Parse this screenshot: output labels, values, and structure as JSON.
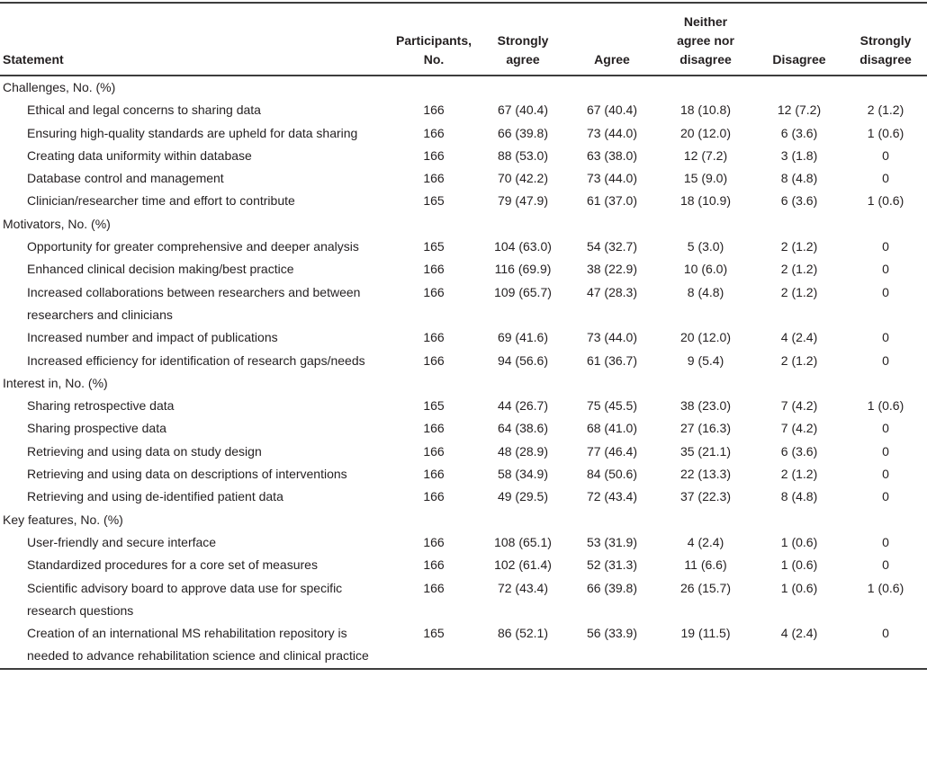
{
  "style": {
    "background": "#ffffff",
    "text_color": "#231f20",
    "rule_color": "#3d3d3d"
  },
  "table": {
    "columns": [
      {
        "label": "Statement"
      },
      {
        "label": "Participants,\nNo."
      },
      {
        "label": "Strongly\nagree"
      },
      {
        "label": "Agree"
      },
      {
        "label": "Neither\nagree nor\ndisagree"
      },
      {
        "label": "Disagree"
      },
      {
        "label": "Strongly\ndisagree"
      }
    ],
    "sections": [
      {
        "header": "Challenges, No. (%)",
        "rows": [
          [
            "Ethical and legal concerns to sharing data",
            "166",
            "67 (40.4)",
            "67 (40.4)",
            "18 (10.8)",
            "12 (7.2)",
            "2 (1.2)"
          ],
          [
            "Ensuring high-quality standards are upheld for data sharing",
            "166",
            "66 (39.8)",
            "73 (44.0)",
            "20 (12.0)",
            "6 (3.6)",
            "1 (0.6)"
          ],
          [
            "Creating data uniformity within database",
            "166",
            "88 (53.0)",
            "63 (38.0)",
            "12 (7.2)",
            "3 (1.8)",
            "0"
          ],
          [
            "Database control and management",
            "166",
            "70 (42.2)",
            "73 (44.0)",
            "15 (9.0)",
            "8 (4.8)",
            "0"
          ],
          [
            "Clinician/researcher time and effort to contribute",
            "165",
            "79 (47.9)",
            "61 (37.0)",
            "18 (10.9)",
            "6 (3.6)",
            "1 (0.6)"
          ]
        ]
      },
      {
        "header": "Motivators, No. (%)",
        "rows": [
          [
            "Opportunity for greater comprehensive and deeper analysis",
            "165",
            "104 (63.0)",
            "54 (32.7)",
            "5 (3.0)",
            "2 (1.2)",
            "0"
          ],
          [
            "Enhanced clinical decision making/best practice",
            "166",
            "116 (69.9)",
            "38 (22.9)",
            "10 (6.0)",
            "2 (1.2)",
            "0"
          ],
          [
            "Increased collaborations between researchers and between researchers and clinicians",
            "166",
            "109 (65.7)",
            "47 (28.3)",
            "8 (4.8)",
            "2 (1.2)",
            "0"
          ],
          [
            "Increased number and impact of publications",
            "166",
            "69 (41.6)",
            "73 (44.0)",
            "20 (12.0)",
            "4 (2.4)",
            "0"
          ],
          [
            "Increased efficiency for identification of research gaps/needs",
            "166",
            "94 (56.6)",
            "61 (36.7)",
            "9 (5.4)",
            "2 (1.2)",
            "0"
          ]
        ]
      },
      {
        "header": "Interest in, No. (%)",
        "rows": [
          [
            "Sharing retrospective data",
            "165",
            "44 (26.7)",
            "75 (45.5)",
            "38 (23.0)",
            "7 (4.2)",
            "1 (0.6)"
          ],
          [
            "Sharing prospective data",
            "166",
            "64 (38.6)",
            "68 (41.0)",
            "27 (16.3)",
            "7 (4.2)",
            "0"
          ],
          [
            "Retrieving and using data on study design",
            "166",
            "48 (28.9)",
            "77 (46.4)",
            "35 (21.1)",
            "6 (3.6)",
            "0"
          ],
          [
            "Retrieving and using data on descriptions of interventions",
            "166",
            "58 (34.9)",
            "84 (50.6)",
            "22 (13.3)",
            "2 (1.2)",
            "0"
          ],
          [
            "Retrieving and using de-identified patient data",
            "166",
            "49 (29.5)",
            "72 (43.4)",
            "37 (22.3)",
            "8 (4.8)",
            "0"
          ]
        ]
      },
      {
        "header": "Key features, No. (%)",
        "rows": [
          [
            "User-friendly and secure interface",
            "166",
            "108 (65.1)",
            "53 (31.9)",
            "4 (2.4)",
            "1 (0.6)",
            "0"
          ],
          [
            "Standardized procedures for a core set of measures",
            "166",
            "102 (61.4)",
            "52 (31.3)",
            "11 (6.6)",
            "1 (0.6)",
            "0"
          ],
          [
            "Scientific advisory board to approve data use for specific research questions",
            "166",
            "72 (43.4)",
            "66 (39.8)",
            "26 (15.7)",
            "1 (0.6)",
            "1 (0.6)"
          ],
          [
            "Creation of an international MS rehabilitation repository is needed to advance rehabilitation science and clinical practice",
            "165",
            "86 (52.1)",
            "56 (33.9)",
            "19 (11.5)",
            "4 (2.4)",
            "0"
          ]
        ]
      }
    ]
  }
}
